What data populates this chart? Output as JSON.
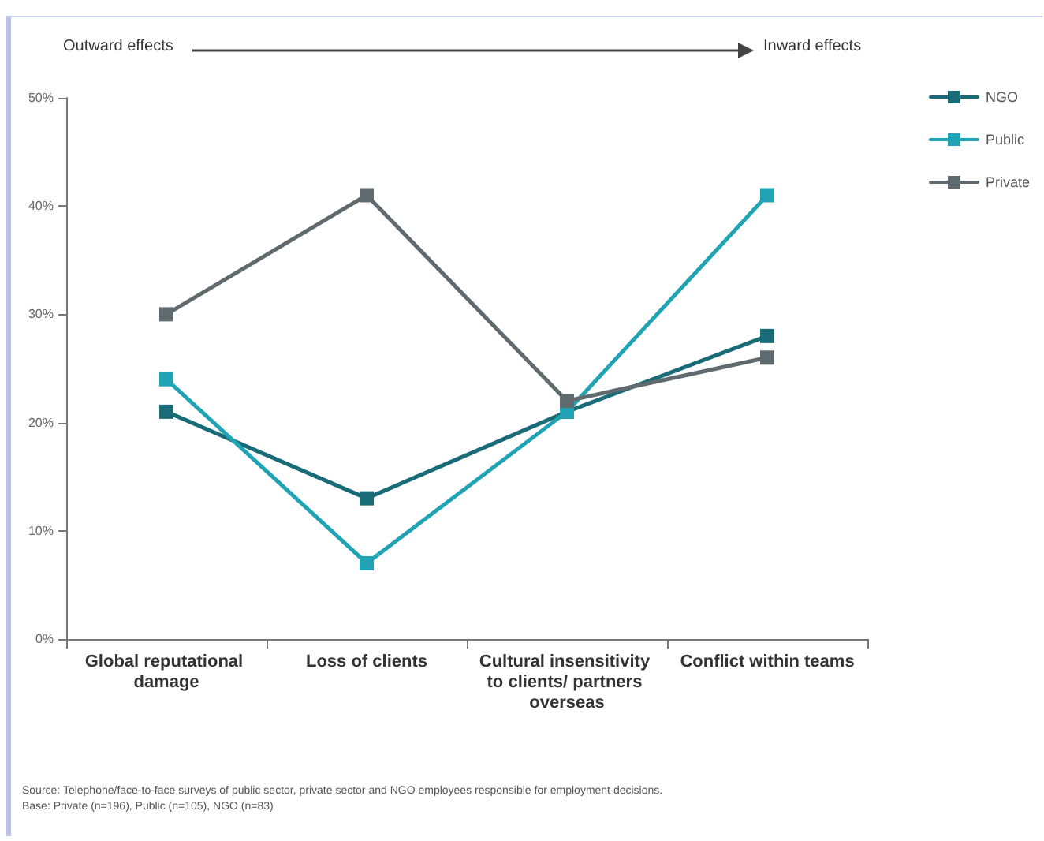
{
  "chart_data": {
    "type": "line",
    "categories": [
      "Global reputational damage",
      "Loss of clients",
      "Cultural insensitivity to clients/ partners overseas",
      "Conflict within teams"
    ],
    "series": [
      {
        "name": "NGO",
        "color": "#1a6b78",
        "values": [
          21,
          13,
          21,
          28
        ]
      },
      {
        "name": "Public",
        "color": "#1fa3b5",
        "values": [
          24,
          7,
          21,
          41
        ]
      },
      {
        "name": "Private",
        "color": "#5f6a6e",
        "values": [
          30,
          41,
          22,
          26
        ]
      }
    ],
    "ylim": [
      0,
      50
    ],
    "yticks": [
      {
        "value": 0,
        "label": "0%"
      },
      {
        "value": 10,
        "label": "10%"
      },
      {
        "value": 20,
        "label": "20%"
      },
      {
        "value": 30,
        "label": "30%"
      },
      {
        "value": 40,
        "label": "40%"
      },
      {
        "value": 50,
        "label": "50%"
      }
    ],
    "annotations": [
      "Outward effects",
      "Inward effects",
      "Source: Telephone/face-to-face surveys of public sector, private sector and NGO employees responsible for employment decisions.",
      "Base: Private (n=196), Public (n=105), NGO (n=83)"
    ],
    "marker": "square",
    "line_style": "solid",
    "grid": false,
    "legend": "top right"
  }
}
